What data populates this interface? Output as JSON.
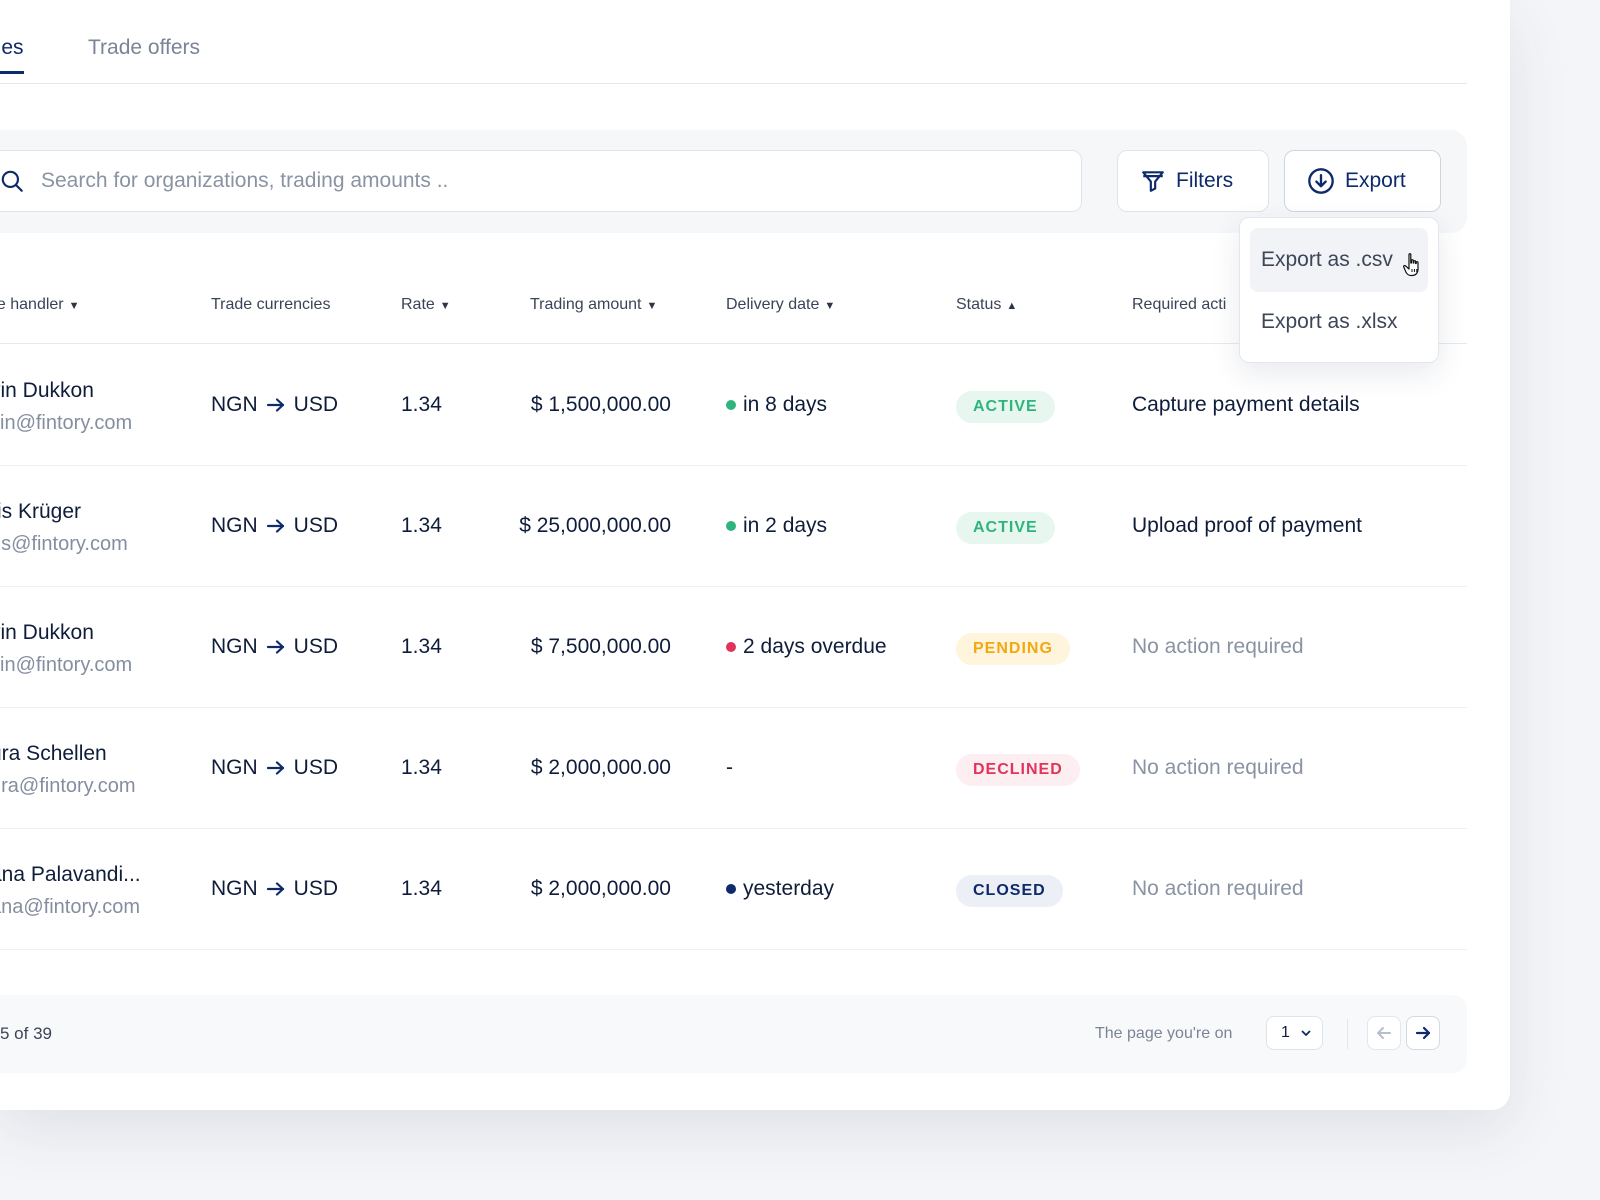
{
  "tabs": [
    {
      "label": "ades",
      "active": true
    },
    {
      "label": "Trade offers",
      "active": false
    }
  ],
  "search": {
    "placeholder": "Search for organizations, trading amounts .."
  },
  "toolbar": {
    "filters_label": "Filters",
    "export_label": "Export"
  },
  "export_menu": {
    "items": [
      "Export as .csv",
      "Export as .xlsx"
    ]
  },
  "columns": {
    "handler": "de handler",
    "currencies": "Trade currencies",
    "rate": "Rate",
    "amount": "Trading amount",
    "delivery": "Delivery date",
    "status": "Status",
    "action": "Required acti"
  },
  "rows": [
    {
      "name": "vin Dukkon",
      "email": "vin@fintory.com",
      "from": "NGN",
      "to": "USD",
      "rate": "1.34",
      "amount": "$ 1,500,000.00",
      "delivery": "in 8 days",
      "dot": "#2fb47e",
      "status": "ACTIVE",
      "action": "Capture payment details",
      "action_muted": false
    },
    {
      "name": "ris Krüger",
      "email": "ris@fintory.com",
      "from": "NGN",
      "to": "USD",
      "rate": "1.34",
      "amount": "$ 25,000,000.00",
      "delivery": "in 2 days",
      "dot": "#2fb47e",
      "status": "ACTIVE",
      "action": "Upload proof of payment",
      "action_muted": false
    },
    {
      "name": "vin Dukkon",
      "email": "vin@fintory.com",
      "from": "NGN",
      "to": "USD",
      "rate": "1.34",
      "amount": "$ 7,500,000.00",
      "delivery": "2 days overdue",
      "dot": "#e0345a",
      "status": "PENDING",
      "action": "No action required",
      "action_muted": true
    },
    {
      "name": "ura Schellen",
      "email": "ura@fintory.com",
      "from": "NGN",
      "to": "USD",
      "rate": "1.34",
      "amount": "$ 2,000,000.00",
      "delivery": "-",
      "dot": "",
      "status": "DECLINED",
      "action": "No action required",
      "action_muted": true
    },
    {
      "name": "ana Palavandi...",
      "email": "ana@fintory.com",
      "from": "NGN",
      "to": "USD",
      "rate": "1.34",
      "amount": "$ 2,000,000.00",
      "delivery": "yesterday",
      "dot": "#0d2a6b",
      "status": "CLOSED",
      "action": "No action required",
      "action_muted": true
    }
  ],
  "status_styles": {
    "ACTIVE": {
      "bg": "#e7f7ef",
      "fg": "#2fb47e"
    },
    "PENDING": {
      "bg": "#fff5dc",
      "fg": "#f3a712"
    },
    "DECLINED": {
      "bg": "#fdeef1",
      "fg": "#e0345a"
    },
    "CLOSED": {
      "bg": "#eceff5",
      "fg": "#0d2a6b"
    }
  },
  "pagination": {
    "range": "5 of 39",
    "label": "The page you're on",
    "page": "1"
  },
  "colors": {
    "accent": "#0d2a6b",
    "muted": "#8a93a4"
  }
}
